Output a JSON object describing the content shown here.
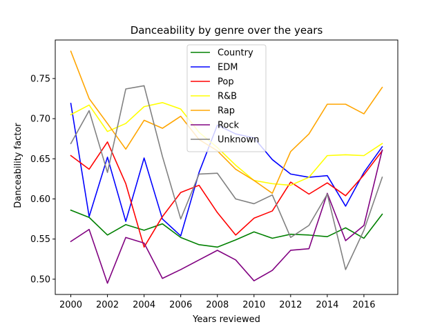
{
  "chart_data": {
    "type": "line",
    "title": "Danceability by genre over the years",
    "xlabel": "Years reviewed",
    "ylabel": "Danceability factor",
    "x": [
      2000,
      2001,
      2002,
      2003,
      2004,
      2005,
      2006,
      2007,
      2008,
      2009,
      2010,
      2011,
      2012,
      2013,
      2014,
      2015,
      2016,
      2017
    ],
    "xlim": [
      1999.15,
      2017.85
    ],
    "ylim": [
      0.481,
      0.798
    ],
    "xticks": [
      2000,
      2002,
      2004,
      2006,
      2008,
      2010,
      2012,
      2014,
      2016
    ],
    "xtick_labels": [
      "2000",
      "2002",
      "2004",
      "2006",
      "2008",
      "2010",
      "2012",
      "2014",
      "2016"
    ],
    "yticks": [
      0.5,
      0.55,
      0.6,
      0.65,
      0.7,
      0.75
    ],
    "ytick_labels": [
      "0.50",
      "0.55",
      "0.60",
      "0.65",
      "0.70",
      "0.75"
    ],
    "grid": false,
    "legend_position": "top-center",
    "series": [
      {
        "name": "Country",
        "color": "#008000",
        "values": [
          0.586,
          0.577,
          0.555,
          0.568,
          0.561,
          0.569,
          0.552,
          0.543,
          0.54,
          0.549,
          0.559,
          0.551,
          0.556,
          0.555,
          0.553,
          0.564,
          0.551,
          0.581
        ]
      },
      {
        "name": "EDM",
        "color": "#0000ff",
        "values": [
          0.719,
          0.578,
          0.652,
          0.572,
          0.651,
          0.575,
          0.554,
          0.633,
          0.692,
          0.681,
          0.676,
          0.649,
          0.631,
          0.627,
          0.629,
          0.591,
          0.633,
          0.665
        ]
      },
      {
        "name": "Pop",
        "color": "#ff0000",
        "values": [
          0.654,
          0.637,
          0.671,
          0.619,
          0.54,
          0.578,
          0.608,
          0.617,
          0.583,
          0.555,
          0.576,
          0.585,
          0.621,
          0.606,
          0.62,
          0.604,
          0.63,
          0.66
        ]
      },
      {
        "name": "R&B",
        "color": "#ffff00",
        "values": [
          0.705,
          0.717,
          0.684,
          0.694,
          0.715,
          0.72,
          0.712,
          0.683,
          0.664,
          0.642,
          0.623,
          0.619,
          0.617,
          0.627,
          0.654,
          0.655,
          0.654,
          0.669
        ]
      },
      {
        "name": "Rap",
        "color": "#ffa500",
        "values": [
          0.784,
          0.725,
          0.694,
          0.662,
          0.698,
          0.688,
          0.703,
          0.674,
          0.66,
          0.637,
          0.623,
          0.607,
          0.659,
          0.681,
          0.718,
          0.718,
          0.706,
          0.739
        ]
      },
      {
        "name": "Rock",
        "color": "#800080",
        "values": [
          0.547,
          0.562,
          0.495,
          0.552,
          0.545,
          0.501,
          0.512,
          0.524,
          0.536,
          0.524,
          0.498,
          0.511,
          0.536,
          0.538,
          0.607,
          0.548,
          0.567,
          0.661
        ]
      },
      {
        "name": "Unknown",
        "color": "#808080",
        "values": [
          0.669,
          0.71,
          0.633,
          0.737,
          0.741,
          0.653,
          0.575,
          0.631,
          0.632,
          0.6,
          0.594,
          0.605,
          0.552,
          0.567,
          0.606,
          0.512,
          0.561,
          0.627
        ]
      }
    ]
  }
}
